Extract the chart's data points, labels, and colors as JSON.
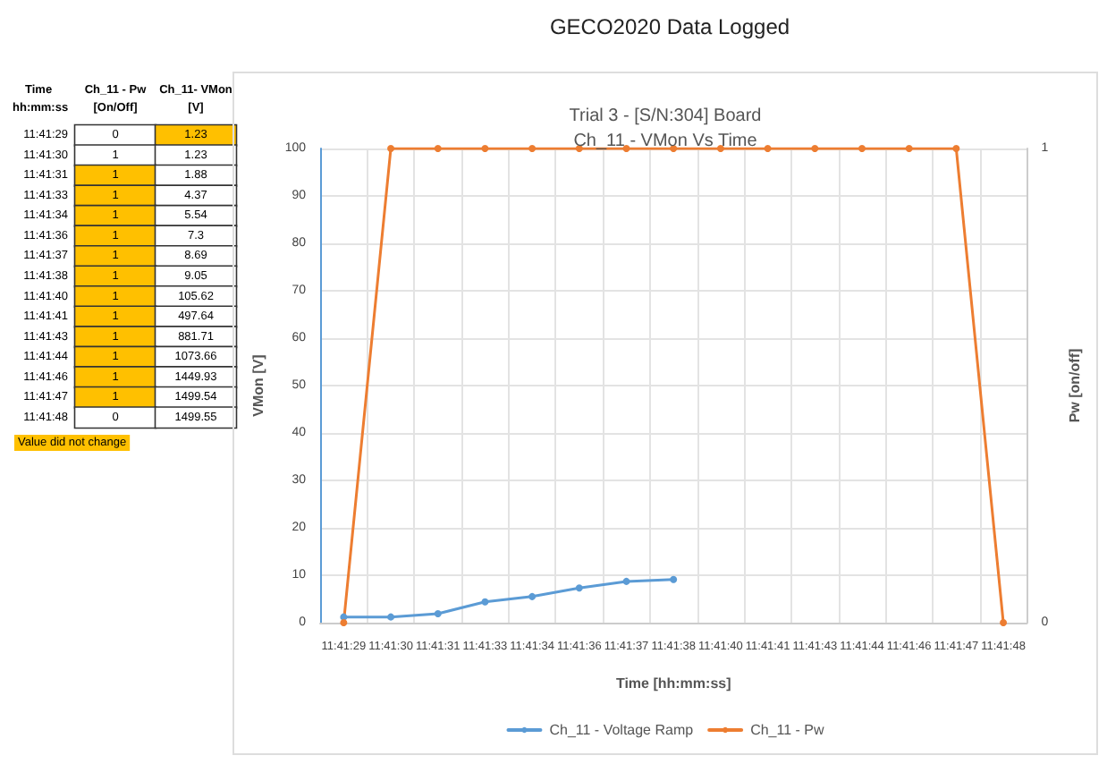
{
  "chart_data": [
    {
      "type": "heatmap",
      "ylabel": "Time",
      "annotations": [
        "hh:mm:ss",
        "[On/Off]",
        "[V]",
        "Value did not change"
      ],
      "categories": [
        "Ch_11 - Pw",
        "Ch_11- VMon"
      ],
      "y_categories": [
        "11:41:29",
        "11:41:30",
        "11:41:31",
        "11:41:33",
        "11:41:34",
        "11:41:36",
        "11:41:37",
        "11:41:38",
        "11:41:40",
        "11:41:41",
        "11:41:43",
        "11:41:44",
        "11:41:46",
        "11:41:47",
        "11:41:48"
      ],
      "cells": [
        [
          0,
          1.23
        ],
        [
          1,
          1.23
        ],
        [
          1,
          1.88
        ],
        [
          1,
          4.37
        ],
        [
          1,
          5.54
        ],
        [
          1,
          7.3
        ],
        [
          1,
          8.69
        ],
        [
          1,
          9.05
        ],
        [
          1,
          105.62
        ],
        [
          1,
          497.64
        ],
        [
          1,
          881.71
        ],
        [
          1,
          1073.66
        ],
        [
          1,
          1449.93
        ],
        [
          1,
          1499.54
        ],
        [
          0,
          1499.55
        ]
      ],
      "cell_labels": [
        [
          "0",
          "1.23"
        ],
        [
          "1",
          "1.23"
        ],
        [
          "1",
          "1.88"
        ],
        [
          "1",
          "4.37"
        ],
        [
          "1",
          "5.54"
        ],
        [
          "1",
          "7.3"
        ],
        [
          "1",
          "8.69"
        ],
        [
          "1",
          "9.05"
        ],
        [
          "1",
          "105.62"
        ],
        [
          "1",
          "497.64"
        ],
        [
          "1",
          "881.71"
        ],
        [
          "1",
          "1073.66"
        ],
        [
          "1",
          "1449.93"
        ],
        [
          "1",
          "1499.54"
        ],
        [
          "0",
          "1499.55"
        ]
      ]
    },
    {
      "type": "line",
      "title": "GECO2020 Data Logged",
      "subtitle": "Trial 3 - [S/N:304] Board",
      "annotations": [
        "Ch_11 - VMon Vs Time"
      ],
      "xlabel": "Time [hh:mm:ss]",
      "ylabel": "VMon [V]",
      "y2label": "Pw [on/off]",
      "categories": [
        "11:41:29",
        "11:41:30",
        "11:41:31",
        "11:41:33",
        "11:41:34",
        "11:41:36",
        "11:41:37",
        "11:41:38",
        "11:41:40",
        "11:41:41",
        "11:41:43",
        "11:41:44",
        "11:41:46",
        "11:41:47",
        "11:41:48"
      ],
      "series": [
        {
          "name": "Ch_11 - Voltage Ramp",
          "color": "#5b9bd5",
          "values": [
            1.2,
            1.2,
            1.9,
            4.4,
            5.5,
            7.3,
            8.7,
            9.1,
            null,
            null,
            null,
            null,
            null,
            null,
            null
          ]
        },
        {
          "name": "Ch_11 - Pw",
          "color": "#ed7d31",
          "axis": "y2",
          "values": [
            0,
            1,
            1,
            1,
            1,
            1,
            1,
            1,
            1,
            1,
            1,
            1,
            1,
            1,
            0
          ]
        }
      ],
      "ylim": [
        0,
        100
      ],
      "yticks": [
        0,
        10,
        20,
        30,
        40,
        50,
        60,
        70,
        80,
        90,
        100
      ],
      "y2lim": [
        0,
        1
      ],
      "y2ticks": [
        0,
        1
      ],
      "grid": true,
      "legend": "bottom",
      "marker": "circle",
      "line_style": "solid"
    }
  ]
}
